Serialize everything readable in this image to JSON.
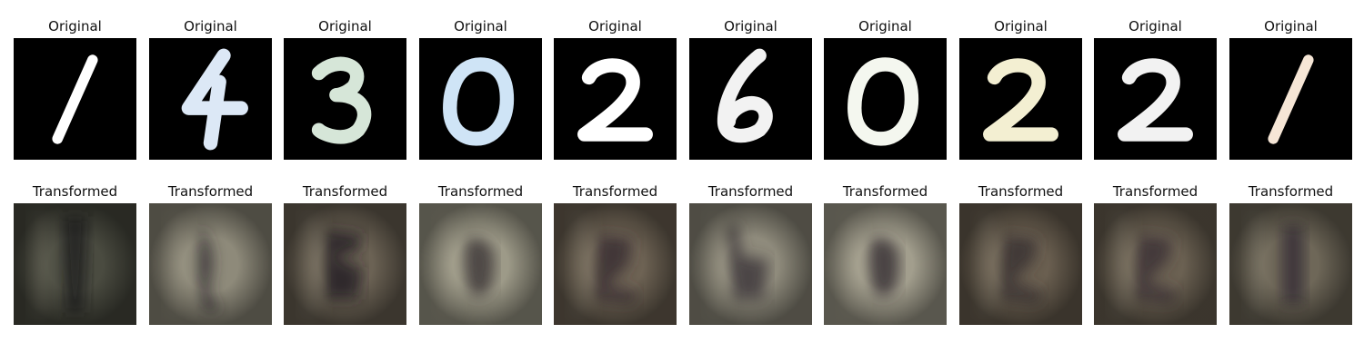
{
  "rows": [
    {
      "name": "original",
      "panels": [
        {
          "title": "Original",
          "digit": "1",
          "ink": "#ffffff",
          "bg": "#000000"
        },
        {
          "title": "Original",
          "digit": "4",
          "ink": "#dce8f6",
          "bg": "#000000"
        },
        {
          "title": "Original",
          "digit": "3",
          "ink": "#d6e6d8",
          "bg": "#000000"
        },
        {
          "title": "Original",
          "digit": "0",
          "ink": "#cfe4f6",
          "bg": "#000000"
        },
        {
          "title": "Original",
          "digit": "2",
          "ink": "#ffffff",
          "bg": "#000000"
        },
        {
          "title": "Original",
          "digit": "6",
          "ink": "#f2f2f2",
          "bg": "#000000"
        },
        {
          "title": "Original",
          "digit": "0",
          "ink": "#f4f7ef",
          "bg": "#000000"
        },
        {
          "title": "Original",
          "digit": "2",
          "ink": "#f3efd2",
          "bg": "#000000"
        },
        {
          "title": "Original",
          "digit": "2",
          "ink": "#f2f2f2",
          "bg": "#000000"
        },
        {
          "title": "Original",
          "digit": "1",
          "ink": "#f6e6d6",
          "bg": "#000000"
        }
      ]
    },
    {
      "name": "transformed",
      "panels": [
        {
          "title": "Transformed",
          "bg": "#4a4b40",
          "mark": "#1c1d1e"
        },
        {
          "title": "Transformed",
          "bg": "#8e8a7a",
          "mark": "#2f2b2f"
        },
        {
          "title": "Transformed",
          "bg": "#6b6254",
          "mark": "#262026"
        },
        {
          "title": "Transformed",
          "bg": "#9d9a88",
          "mark": "#3e3838"
        },
        {
          "title": "Transformed",
          "bg": "#6e6354",
          "mark": "#3a3034"
        },
        {
          "title": "Transformed",
          "bg": "#8f8b7c",
          "mark": "#403a3c"
        },
        {
          "title": "Transformed",
          "bg": "#a29e8d",
          "mark": "#3a3436"
        },
        {
          "title": "Transformed",
          "bg": "#6a5f50",
          "mark": "#3b3134"
        },
        {
          "title": "Transformed",
          "bg": "#6b6152",
          "mark": "#3c3236"
        },
        {
          "title": "Transformed",
          "bg": "#6e6758",
          "mark": "#363035"
        }
      ]
    }
  ]
}
